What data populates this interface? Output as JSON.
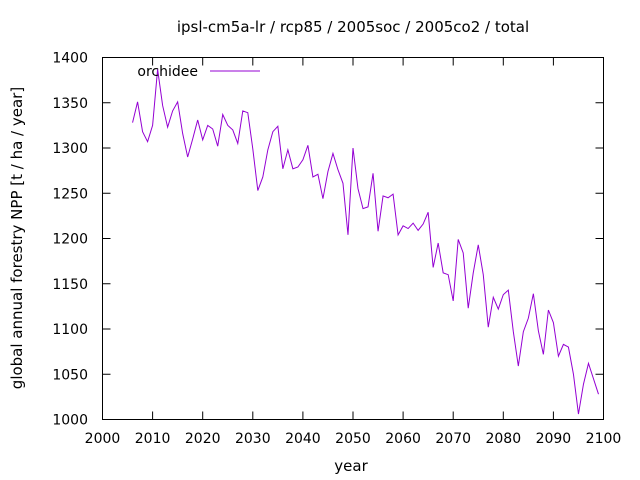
{
  "chart_data": {
    "type": "line",
    "title": "ipsl-cm5a-lr / rcp85 / 2005soc / 2005co2 / total",
    "xlabel": "year",
    "ylabel": "global annual forestry NPP [t / ha / year]",
    "xlim": [
      2000,
      2100
    ],
    "ylim": [
      1000,
      1400
    ],
    "xticks": [
      2000,
      2010,
      2020,
      2030,
      2040,
      2050,
      2060,
      2070,
      2080,
      2090,
      2100
    ],
    "yticks": [
      1000,
      1050,
      1100,
      1150,
      1200,
      1250,
      1300,
      1350,
      1400
    ],
    "grid": false,
    "legend_position": "top-left",
    "series": [
      {
        "name": "orchidee",
        "color": "#9400d3",
        "x": [
          2006,
          2007,
          2008,
          2009,
          2010,
          2011,
          2012,
          2013,
          2014,
          2015,
          2016,
          2017,
          2018,
          2019,
          2020,
          2021,
          2022,
          2023,
          2024,
          2025,
          2026,
          2027,
          2028,
          2029,
          2030,
          2031,
          2032,
          2033,
          2034,
          2035,
          2036,
          2037,
          2038,
          2039,
          2040,
          2041,
          2042,
          2043,
          2044,
          2045,
          2046,
          2047,
          2048,
          2049,
          2050,
          2051,
          2052,
          2053,
          2054,
          2055,
          2056,
          2057,
          2058,
          2059,
          2060,
          2061,
          2062,
          2063,
          2064,
          2065,
          2066,
          2067,
          2068,
          2069,
          2070,
          2071,
          2072,
          2073,
          2074,
          2075,
          2076,
          2077,
          2078,
          2079,
          2080,
          2081,
          2082,
          2083,
          2084,
          2085,
          2086,
          2087,
          2088,
          2089,
          2090,
          2091,
          2092,
          2093,
          2094,
          2095,
          2096,
          2097,
          2098,
          2099
        ],
        "values": [
          1328,
          1351,
          1318,
          1307,
          1325,
          1387,
          1347,
          1323,
          1341,
          1351,
          1316,
          1290,
          1310,
          1331,
          1309,
          1325,
          1321,
          1302,
          1337,
          1325,
          1320,
          1305,
          1341,
          1339,
          1299,
          1253,
          1268,
          1298,
          1318,
          1324,
          1277,
          1298,
          1277,
          1279,
          1287,
          1303,
          1268,
          1271,
          1244,
          1274,
          1294,
          1276,
          1261,
          1204,
          1300,
          1255,
          1233,
          1235,
          1272,
          1208,
          1247,
          1245,
          1249,
          1204,
          1214,
          1211,
          1217,
          1209,
          1216,
          1229,
          1168,
          1195,
          1162,
          1160,
          1131,
          1199,
          1184,
          1123,
          1162,
          1193,
          1160,
          1102,
          1135,
          1122,
          1138,
          1143,
          1097,
          1059,
          1097,
          1112,
          1139,
          1098,
          1072,
          1121,
          1107,
          1070,
          1083,
          1080,
          1050,
          1006,
          1039,
          1062,
          1045,
          1028
        ]
      }
    ]
  }
}
